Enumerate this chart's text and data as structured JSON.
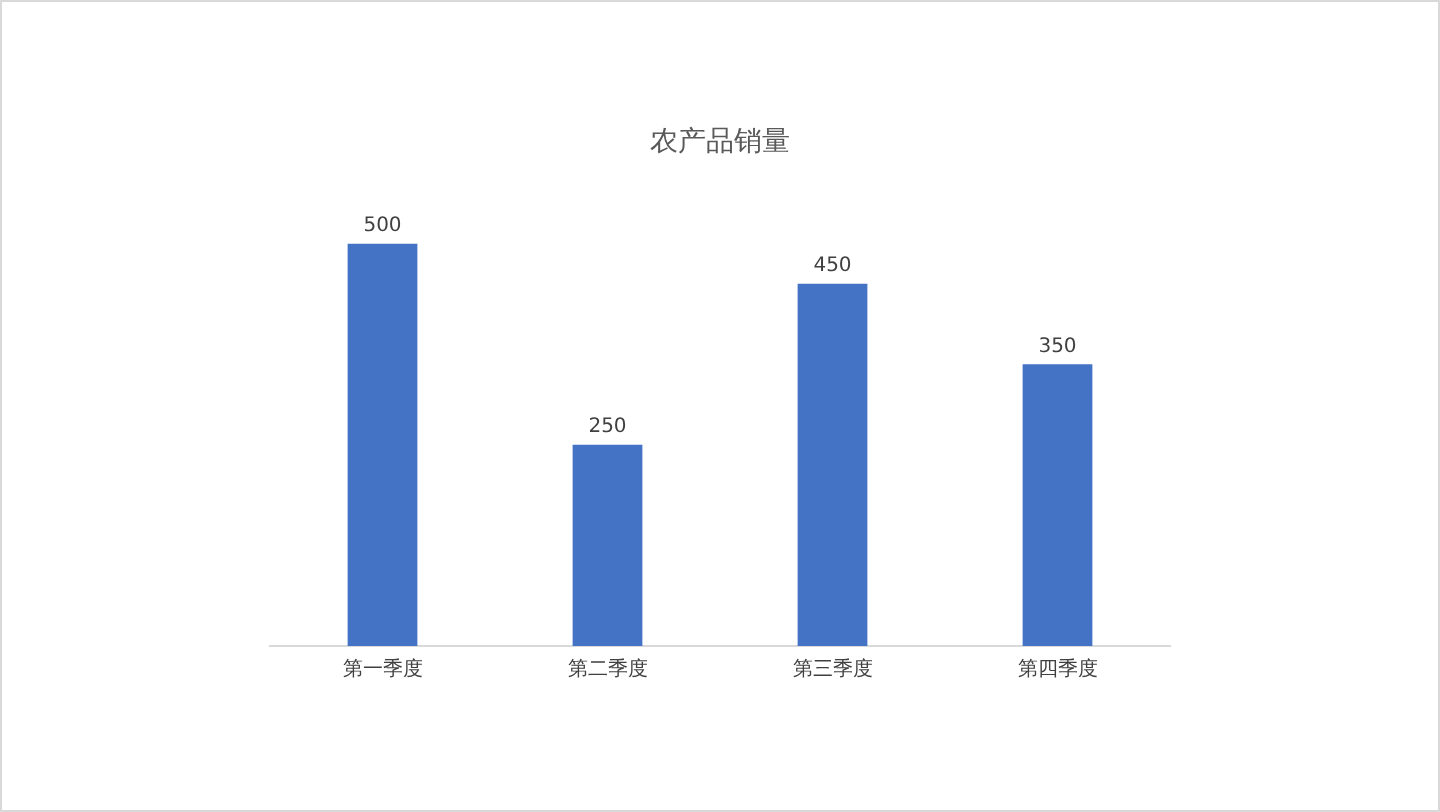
{
  "chart_data": {
    "type": "bar",
    "title": "农产品销量",
    "categories": [
      "第一季度",
      "第二季度",
      "第三季度",
      "第四季度"
    ],
    "values": [
      500,
      250,
      450,
      350
    ],
    "color": "#4472c4",
    "data_labels": true,
    "tick_labels": "x"
  }
}
